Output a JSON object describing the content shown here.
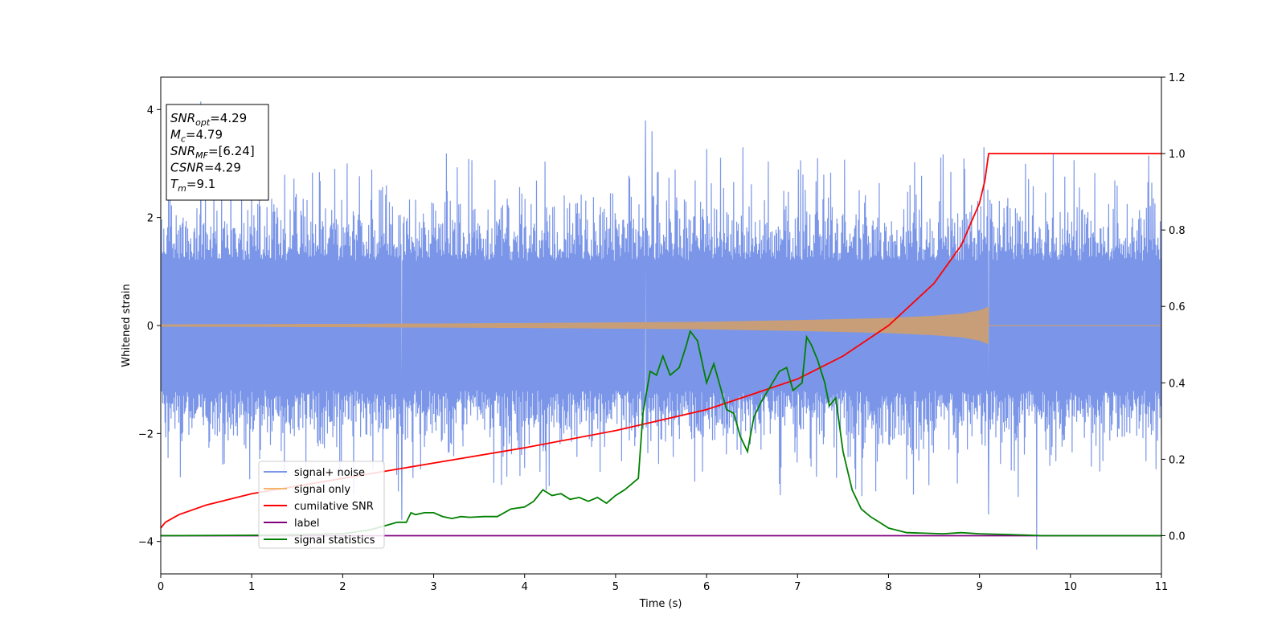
{
  "chart_data": {
    "type": "line",
    "title": "",
    "xlabel": "Time (s)",
    "ylabel": "Whitened strain",
    "ylabel_right": "",
    "xlim": [
      0,
      11
    ],
    "ylim": [
      -4.6,
      4.6
    ],
    "ylim_right": [
      -0.1,
      1.2
    ],
    "x_ticks": [
      "0",
      "1",
      "2",
      "3",
      "4",
      "5",
      "6",
      "7",
      "8",
      "9",
      "10",
      "11"
    ],
    "y_ticks": [
      "-4",
      "-2",
      "0",
      "2",
      "4"
    ],
    "y_ticks_right": [
      "0.0",
      "0.2",
      "0.4",
      "0.6",
      "0.8",
      "1.0",
      "1.2"
    ],
    "grid": false,
    "legend_position": "lower-left",
    "series": [
      {
        "name": "signal+ noise",
        "axis": "left",
        "color": "#7b96e8",
        "description_values": {
          "x_range": [
            0,
            11
          ],
          "typical_amplitude": 1.5,
          "peak_spikes": [
            {
              "x": 0.44,
              "y": 4.15
            },
            {
              "x": 5.33,
              "y": 3.8
            },
            {
              "x": 5.4,
              "y": 3.6
            },
            {
              "x": 6.4,
              "y": 3.3
            },
            {
              "x": 9.05,
              "y": 3.3
            },
            {
              "x": 9.63,
              "y": -4.15
            },
            {
              "x": 2.65,
              "y": -3.6
            },
            {
              "x": 9.1,
              "y": -3.5
            }
          ]
        }
      },
      {
        "name": "signal only",
        "axis": "left",
        "color": "#f5b46b",
        "envelope": [
          [
            0,
            0.02
          ],
          [
            2,
            0.03
          ],
          [
            4,
            0.045
          ],
          [
            6,
            0.07
          ],
          [
            7,
            0.1
          ],
          [
            8,
            0.14
          ],
          [
            8.5,
            0.18
          ],
          [
            8.8,
            0.22
          ],
          [
            9.0,
            0.28
          ],
          [
            9.1,
            0.35
          ],
          [
            9.11,
            0
          ]
        ],
        "cutoff_x": 9.1
      },
      {
        "name": "cumilative SNR",
        "axis": "right",
        "color": "#ff0000",
        "points": [
          [
            0,
            0.02
          ],
          [
            0.05,
            0.035
          ],
          [
            0.2,
            0.055
          ],
          [
            0.5,
            0.08
          ],
          [
            1,
            0.11
          ],
          [
            1.5,
            0.13
          ],
          [
            2,
            0.15
          ],
          [
            3,
            0.19
          ],
          [
            4,
            0.23
          ],
          [
            5,
            0.275
          ],
          [
            6,
            0.33
          ],
          [
            6.5,
            0.37
          ],
          [
            7,
            0.41
          ],
          [
            7.5,
            0.47
          ],
          [
            8,
            0.55
          ],
          [
            8.5,
            0.66
          ],
          [
            8.8,
            0.76
          ],
          [
            9.0,
            0.87
          ],
          [
            9.06,
            0.93
          ],
          [
            9.1,
            1.0
          ],
          [
            11,
            1.0
          ]
        ]
      },
      {
        "name": "label",
        "axis": "right",
        "color": "#800080",
        "points": [
          [
            0,
            0.0
          ],
          [
            11,
            0.0
          ]
        ]
      },
      {
        "name": "signal statistics",
        "axis": "right",
        "color": "#008000",
        "points": [
          [
            0,
            0.0
          ],
          [
            1.0,
            0.001
          ],
          [
            2.0,
            0.005
          ],
          [
            2.3,
            0.015
          ],
          [
            2.45,
            0.025
          ],
          [
            2.6,
            0.035
          ],
          [
            2.7,
            0.035
          ],
          [
            2.75,
            0.06
          ],
          [
            2.8,
            0.055
          ],
          [
            2.9,
            0.06
          ],
          [
            3.0,
            0.06
          ],
          [
            3.1,
            0.05
          ],
          [
            3.2,
            0.045
          ],
          [
            3.3,
            0.05
          ],
          [
            3.4,
            0.048
          ],
          [
            3.55,
            0.05
          ],
          [
            3.7,
            0.05
          ],
          [
            3.85,
            0.07
          ],
          [
            4.0,
            0.075
          ],
          [
            4.1,
            0.09
          ],
          [
            4.2,
            0.12
          ],
          [
            4.3,
            0.105
          ],
          [
            4.4,
            0.11
          ],
          [
            4.5,
            0.095
          ],
          [
            4.6,
            0.1
          ],
          [
            4.7,
            0.09
          ],
          [
            4.8,
            0.1
          ],
          [
            4.9,
            0.085
          ],
          [
            5.0,
            0.105
          ],
          [
            5.1,
            0.12
          ],
          [
            5.2,
            0.14
          ],
          [
            5.25,
            0.15
          ],
          [
            5.3,
            0.32
          ],
          [
            5.38,
            0.43
          ],
          [
            5.45,
            0.42
          ],
          [
            5.52,
            0.47
          ],
          [
            5.6,
            0.42
          ],
          [
            5.7,
            0.44
          ],
          [
            5.78,
            0.5
          ],
          [
            5.82,
            0.535
          ],
          [
            5.9,
            0.51
          ],
          [
            6.0,
            0.4
          ],
          [
            6.08,
            0.45
          ],
          [
            6.15,
            0.39
          ],
          [
            6.22,
            0.33
          ],
          [
            6.3,
            0.32
          ],
          [
            6.37,
            0.26
          ],
          [
            6.45,
            0.22
          ],
          [
            6.52,
            0.31
          ],
          [
            6.6,
            0.35
          ],
          [
            6.7,
            0.39
          ],
          [
            6.8,
            0.43
          ],
          [
            6.88,
            0.44
          ],
          [
            6.95,
            0.38
          ],
          [
            7.05,
            0.4
          ],
          [
            7.1,
            0.52
          ],
          [
            7.15,
            0.5
          ],
          [
            7.22,
            0.46
          ],
          [
            7.3,
            0.4
          ],
          [
            7.35,
            0.34
          ],
          [
            7.42,
            0.36
          ],
          [
            7.5,
            0.22
          ],
          [
            7.6,
            0.12
          ],
          [
            7.7,
            0.07
          ],
          [
            7.8,
            0.05
          ],
          [
            7.9,
            0.035
          ],
          [
            8.0,
            0.02
          ],
          [
            8.2,
            0.008
          ],
          [
            8.6,
            0.005
          ],
          [
            8.8,
            0.008
          ],
          [
            9.0,
            0.005
          ],
          [
            9.3,
            0.003
          ],
          [
            9.7,
            0.0
          ],
          [
            11,
            0.0
          ]
        ]
      }
    ],
    "annotation_lines": [
      {
        "label": "SNR",
        "sub": "opt",
        "value": "=4.29"
      },
      {
        "label": "M",
        "sub": "c",
        "value": "=4.79"
      },
      {
        "label": "SNR",
        "sub": "MF",
        "value": "=[6.24]"
      },
      {
        "label": "CSNR",
        "sub": "",
        "value": "=4.29"
      },
      {
        "label": "T",
        "sub": "m",
        "value": "=9.1"
      }
    ]
  }
}
